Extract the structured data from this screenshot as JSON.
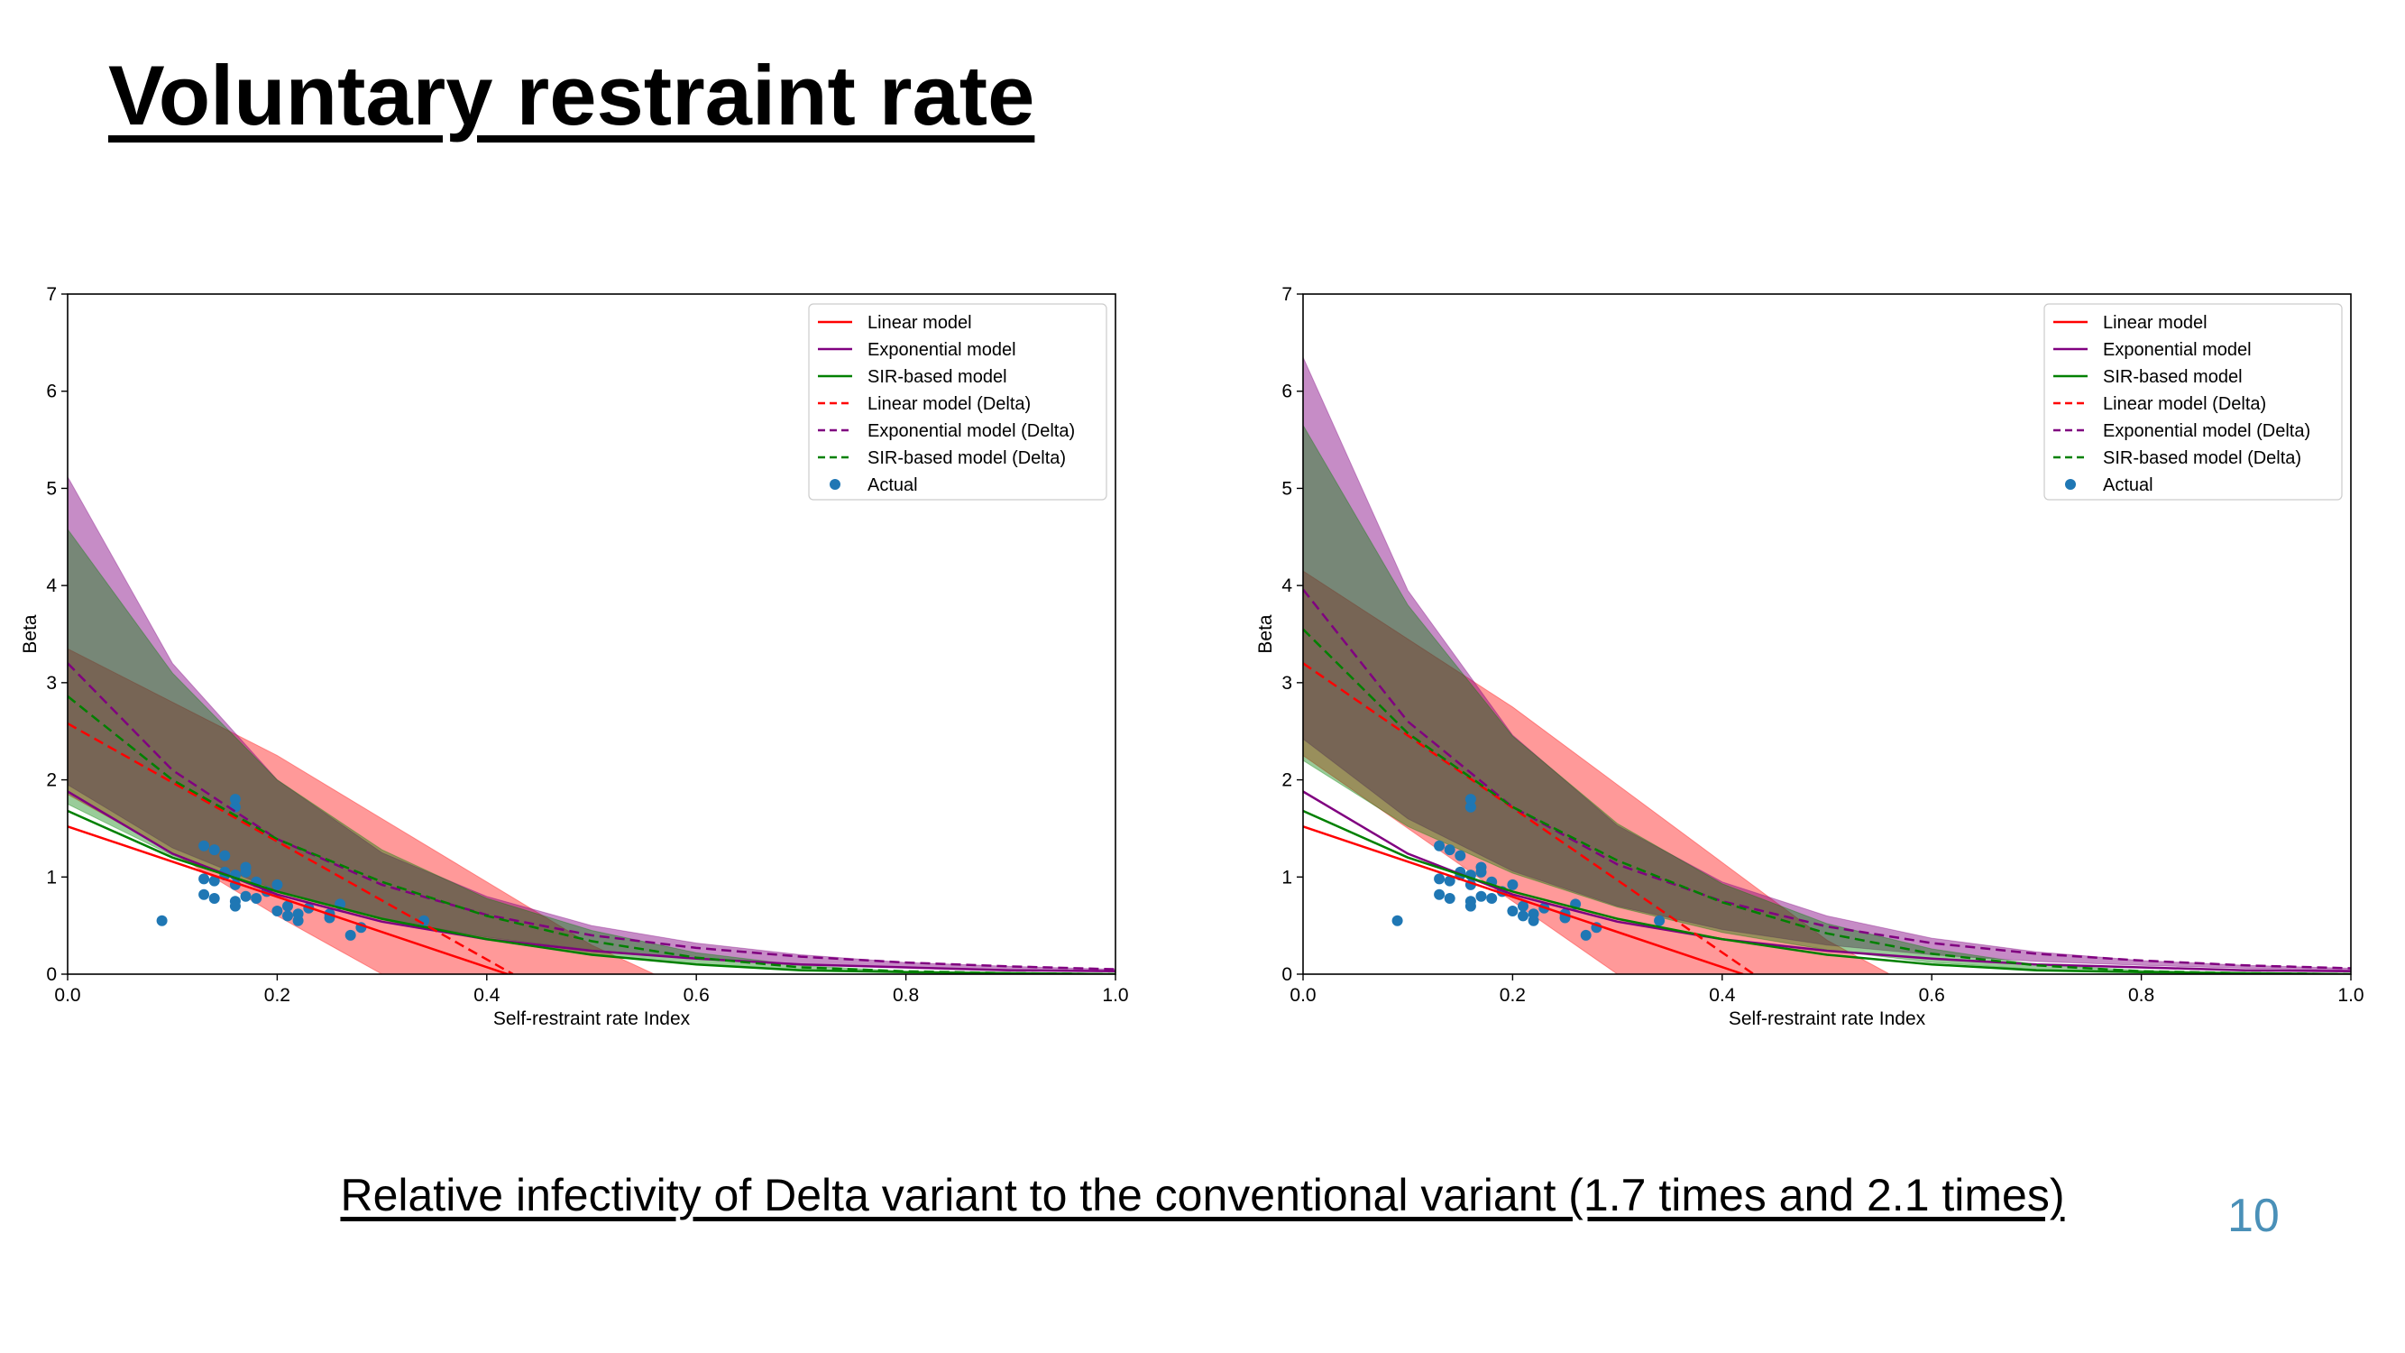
{
  "slide": {
    "title": "Voluntary restraint rate",
    "caption": "Relative infectivity of Delta variant to the conventional variant (1.7 times and 2.1 times)",
    "page_number": "10"
  },
  "colors": {
    "linear": "#ff0000",
    "exponential": "#800080",
    "sir": "#008000",
    "actual": "#1f77b4"
  },
  "chart_data": [
    {
      "type": "line",
      "xlabel": "Self-restraint rate Index",
      "ylabel": "Beta",
      "xlim": [
        0.0,
        1.0
      ],
      "ylim": [
        0,
        7
      ],
      "xticks": [
        "0.0",
        "0.2",
        "0.4",
        "0.6",
        "0.8",
        "1.0"
      ],
      "yticks": [
        "0",
        "1",
        "2",
        "3",
        "4",
        "5",
        "6",
        "7"
      ],
      "legend_position": "top-right",
      "legend": [
        "Linear model",
        "Exponential model",
        "SIR-based model",
        "Linear model (Delta)",
        "Exponential model (Delta)",
        "SIR-based model (Delta)",
        "Actual"
      ],
      "series": [
        {
          "name": "Linear model",
          "style": "solid",
          "color": "#ff0000",
          "x": [
            0.0,
            0.42
          ],
          "y": [
            1.52,
            0.0
          ]
        },
        {
          "name": "Exponential model",
          "style": "solid",
          "color": "#800080",
          "x": [
            0.0,
            0.1,
            0.2,
            0.3,
            0.4,
            0.5,
            0.6,
            0.7,
            0.8,
            0.9,
            1.0
          ],
          "y": [
            1.88,
            1.24,
            0.82,
            0.54,
            0.36,
            0.24,
            0.16,
            0.1,
            0.07,
            0.04,
            0.03
          ]
        },
        {
          "name": "SIR-based model",
          "style": "solid",
          "color": "#008000",
          "x": [
            0.0,
            0.1,
            0.2,
            0.3,
            0.4,
            0.5,
            0.6,
            0.7,
            0.8,
            0.9,
            1.0
          ],
          "y": [
            1.68,
            1.2,
            0.85,
            0.57,
            0.36,
            0.2,
            0.1,
            0.04,
            0.02,
            0.01,
            0.0
          ]
        },
        {
          "name": "Linear model (Delta)",
          "style": "dashed",
          "color": "#ff0000",
          "x": [
            0.0,
            0.425
          ],
          "y": [
            2.58,
            0.0
          ]
        },
        {
          "name": "Exponential model (Delta)",
          "style": "dashed",
          "color": "#800080",
          "x": [
            0.0,
            0.1,
            0.2,
            0.3,
            0.4,
            0.5,
            0.6,
            0.7,
            0.8,
            0.9,
            1.0
          ],
          "y": [
            3.2,
            2.1,
            1.39,
            0.92,
            0.61,
            0.4,
            0.27,
            0.18,
            0.12,
            0.08,
            0.05
          ]
        },
        {
          "name": "SIR-based model (Delta)",
          "style": "dashed",
          "color": "#008000",
          "x": [
            0.0,
            0.1,
            0.2,
            0.3,
            0.4,
            0.5,
            0.6,
            0.7,
            0.8,
            0.9,
            1.0
          ],
          "y": [
            2.86,
            2.0,
            1.39,
            0.95,
            0.6,
            0.34,
            0.17,
            0.07,
            0.03,
            0.01,
            0.0
          ]
        }
      ],
      "bands": [
        {
          "name": "Linear model (Delta) range",
          "color": "#ff0000",
          "opacity": 0.4,
          "x": [
            0.0,
            0.1,
            0.2,
            0.3,
            0.4,
            0.5,
            0.56
          ],
          "upper": [
            3.35,
            2.8,
            2.25,
            1.6,
            0.95,
            0.3,
            0.0
          ],
          "lower": [
            1.85,
            1.25,
            0.6,
            0.0,
            0.0,
            0.0,
            0.0
          ]
        },
        {
          "name": "Exponential model (Delta) range",
          "color": "#800080",
          "opacity": 0.45,
          "x": [
            0.0,
            0.1,
            0.2,
            0.3,
            0.4,
            0.5,
            0.6,
            0.7,
            0.8,
            0.9,
            1.0
          ],
          "upper": [
            5.12,
            3.2,
            2.0,
            1.25,
            0.8,
            0.5,
            0.32,
            0.2,
            0.12,
            0.08,
            0.05
          ],
          "lower": [
            1.95,
            1.3,
            0.86,
            0.57,
            0.38,
            0.25,
            0.16,
            0.1,
            0.07,
            0.04,
            0.03
          ]
        },
        {
          "name": "SIR-based model (Delta) range",
          "color": "#008000",
          "opacity": 0.4,
          "x": [
            0.0,
            0.1,
            0.2,
            0.3,
            0.4,
            0.5,
            0.6,
            0.7,
            0.8,
            0.9,
            1.0
          ],
          "upper": [
            4.58,
            3.1,
            2.0,
            1.28,
            0.78,
            0.45,
            0.22,
            0.09,
            0.03,
            0.01,
            0.0
          ],
          "lower": [
            1.75,
            1.22,
            0.84,
            0.56,
            0.35,
            0.2,
            0.1,
            0.04,
            0.02,
            0.01,
            0.0
          ]
        }
      ],
      "scatter": {
        "name": "Actual",
        "color": "#1f77b4",
        "x": [
          0.09,
          0.13,
          0.13,
          0.14,
          0.14,
          0.15,
          0.15,
          0.16,
          0.16,
          0.16,
          0.16,
          0.17,
          0.17,
          0.17,
          0.18,
          0.18,
          0.19,
          0.2,
          0.2,
          0.21,
          0.21,
          0.22,
          0.22,
          0.23,
          0.25,
          0.25,
          0.26,
          0.27,
          0.28,
          0.34,
          0.13,
          0.14,
          0.16,
          0.16,
          0.15
        ],
        "y": [
          0.55,
          0.98,
          0.82,
          0.78,
          0.96,
          1.05,
          1.02,
          0.75,
          0.7,
          1.72,
          1.8,
          1.1,
          1.05,
          0.8,
          0.95,
          0.78,
          0.85,
          0.92,
          0.65,
          0.6,
          0.7,
          0.55,
          0.62,
          0.68,
          0.58,
          0.62,
          0.72,
          0.4,
          0.48,
          0.55,
          1.32,
          1.28,
          1.02,
          0.92,
          1.22
        ]
      }
    },
    {
      "type": "line",
      "xlabel": "Self-restraint rate Index",
      "ylabel": "Beta",
      "xlim": [
        0.0,
        1.0
      ],
      "ylim": [
        0,
        7
      ],
      "xticks": [
        "0.0",
        "0.2",
        "0.4",
        "0.6",
        "0.8",
        "1.0"
      ],
      "yticks": [
        "0",
        "1",
        "2",
        "3",
        "4",
        "5",
        "6",
        "7"
      ],
      "legend_position": "top-right",
      "legend": [
        "Linear model",
        "Exponential model",
        "SIR-based model",
        "Linear model (Delta)",
        "Exponential model (Delta)",
        "SIR-based model (Delta)",
        "Actual"
      ],
      "series": [
        {
          "name": "Linear model",
          "style": "solid",
          "color": "#ff0000",
          "x": [
            0.0,
            0.42
          ],
          "y": [
            1.52,
            0.0
          ]
        },
        {
          "name": "Exponential model",
          "style": "solid",
          "color": "#800080",
          "x": [
            0.0,
            0.1,
            0.2,
            0.3,
            0.4,
            0.5,
            0.6,
            0.7,
            0.8,
            0.9,
            1.0
          ],
          "y": [
            1.88,
            1.24,
            0.82,
            0.54,
            0.36,
            0.24,
            0.16,
            0.1,
            0.07,
            0.04,
            0.03
          ]
        },
        {
          "name": "SIR-based model",
          "style": "solid",
          "color": "#008000",
          "x": [
            0.0,
            0.1,
            0.2,
            0.3,
            0.4,
            0.5,
            0.6,
            0.7,
            0.8,
            0.9,
            1.0
          ],
          "y": [
            1.68,
            1.2,
            0.85,
            0.57,
            0.36,
            0.2,
            0.1,
            0.04,
            0.02,
            0.01,
            0.0
          ]
        },
        {
          "name": "Linear model (Delta)",
          "style": "dashed",
          "color": "#ff0000",
          "x": [
            0.0,
            0.43
          ],
          "y": [
            3.2,
            0.0
          ]
        },
        {
          "name": "Exponential model (Delta)",
          "style": "dashed",
          "color": "#800080",
          "x": [
            0.0,
            0.1,
            0.2,
            0.3,
            0.4,
            0.5,
            0.6,
            0.7,
            0.8,
            0.9,
            1.0
          ],
          "y": [
            3.96,
            2.6,
            1.72,
            1.13,
            0.75,
            0.49,
            0.32,
            0.21,
            0.14,
            0.09,
            0.06
          ]
        },
        {
          "name": "SIR-based model (Delta)",
          "style": "dashed",
          "color": "#008000",
          "x": [
            0.0,
            0.1,
            0.2,
            0.3,
            0.4,
            0.5,
            0.6,
            0.7,
            0.8,
            0.9,
            1.0
          ],
          "y": [
            3.55,
            2.48,
            1.72,
            1.17,
            0.74,
            0.42,
            0.21,
            0.09,
            0.03,
            0.01,
            0.0
          ]
        }
      ],
      "bands": [
        {
          "name": "Linear model (Delta) range",
          "color": "#ff0000",
          "opacity": 0.4,
          "x": [
            0.0,
            0.1,
            0.2,
            0.3,
            0.4,
            0.5,
            0.56
          ],
          "upper": [
            4.15,
            3.45,
            2.75,
            1.95,
            1.15,
            0.35,
            0.0
          ],
          "lower": [
            2.25,
            1.5,
            0.75,
            0.0,
            0.0,
            0.0,
            0.0
          ]
        },
        {
          "name": "Exponential model (Delta) range",
          "color": "#800080",
          "opacity": 0.45,
          "x": [
            0.0,
            0.1,
            0.2,
            0.3,
            0.4,
            0.5,
            0.6,
            0.7,
            0.8,
            0.9,
            1.0
          ],
          "upper": [
            6.35,
            3.95,
            2.46,
            1.53,
            0.95,
            0.6,
            0.37,
            0.23,
            0.14,
            0.09,
            0.06
          ],
          "lower": [
            2.42,
            1.6,
            1.06,
            0.7,
            0.46,
            0.3,
            0.2,
            0.13,
            0.09,
            0.06,
            0.04
          ]
        },
        {
          "name": "SIR-based model (Delta) range",
          "color": "#008000",
          "opacity": 0.4,
          "x": [
            0.0,
            0.1,
            0.2,
            0.3,
            0.4,
            0.5,
            0.6,
            0.7,
            0.8,
            0.9,
            1.0
          ],
          "upper": [
            5.65,
            3.8,
            2.45,
            1.55,
            0.93,
            0.52,
            0.26,
            0.1,
            0.04,
            0.01,
            0.0
          ],
          "lower": [
            2.2,
            1.52,
            1.04,
            0.69,
            0.43,
            0.25,
            0.12,
            0.05,
            0.02,
            0.01,
            0.0
          ]
        }
      ],
      "scatter": {
        "name": "Actual",
        "color": "#1f77b4",
        "x": [
          0.09,
          0.13,
          0.13,
          0.14,
          0.14,
          0.15,
          0.15,
          0.16,
          0.16,
          0.16,
          0.16,
          0.17,
          0.17,
          0.17,
          0.18,
          0.18,
          0.19,
          0.2,
          0.2,
          0.21,
          0.21,
          0.22,
          0.22,
          0.23,
          0.25,
          0.25,
          0.26,
          0.27,
          0.28,
          0.34,
          0.13,
          0.14,
          0.16,
          0.16,
          0.15
        ],
        "y": [
          0.55,
          0.98,
          0.82,
          0.78,
          0.96,
          1.05,
          1.02,
          0.75,
          0.7,
          1.72,
          1.8,
          1.1,
          1.05,
          0.8,
          0.95,
          0.78,
          0.85,
          0.92,
          0.65,
          0.6,
          0.7,
          0.55,
          0.62,
          0.68,
          0.58,
          0.62,
          0.72,
          0.4,
          0.48,
          0.55,
          1.32,
          1.28,
          1.02,
          0.92,
          1.22
        ]
      }
    }
  ]
}
